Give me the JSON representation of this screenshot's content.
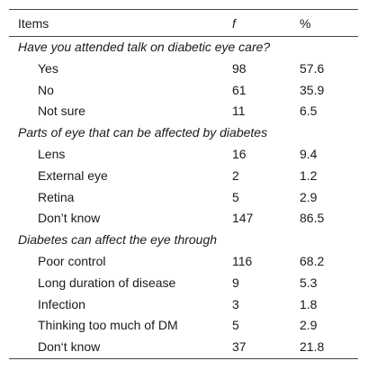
{
  "header": {
    "items": "Items",
    "f": "f",
    "percent": "%"
  },
  "sections": [
    {
      "title": "Have you attended talk on diabetic eye care?",
      "rows": [
        [
          "Yes",
          98,
          57.6
        ],
        [
          "No",
          61,
          35.9
        ],
        [
          "Not sure",
          11,
          6.5
        ]
      ]
    },
    {
      "title": "Parts of eye that can be affected by diabetes",
      "rows": [
        [
          "Lens",
          16,
          9.4
        ],
        [
          "External eye",
          2,
          1.2
        ],
        [
          "Retina",
          5,
          2.9
        ],
        [
          "Don’t know",
          147,
          86.5
        ]
      ]
    },
    {
      "title": "Diabetes can affect the eye through",
      "rows": [
        [
          "Poor control",
          116,
          68.2
        ],
        [
          "Long duration of disease",
          9,
          5.3
        ],
        [
          "Infection",
          3,
          1.8
        ],
        [
          "Thinking too much of DM",
          5,
          2.9
        ],
        [
          "Don‘t know",
          37,
          21.8
        ]
      ]
    }
  ]
}
